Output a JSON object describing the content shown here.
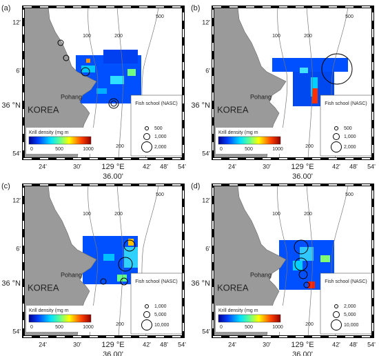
{
  "panels": [
    {
      "label": "(a)",
      "y_labels": [
        "12'",
        "6'",
        "36 °N",
        "54'"
      ],
      "x_labels": [
        "24'",
        "30'",
        "129 °E",
        "42'",
        "48'",
        "54'"
      ],
      "x_sublabel": "36.00'",
      "contours": [
        "100",
        "200",
        "500",
        "100",
        "200"
      ],
      "country": "KOREA",
      "city": "Pohang",
      "krill_legend": {
        "title": "Krill density (mg m",
        "ticks": [
          "0",
          "500",
          "1000"
        ]
      },
      "fish_legend": {
        "title": "Fish school (NASC)",
        "sizes": [
          "500",
          "1,000",
          "2,000"
        ]
      }
    },
    {
      "label": "(b)",
      "y_labels": [
        "12'",
        "6'",
        "36 °N",
        "54'"
      ],
      "x_labels": [
        "24'",
        "30'",
        "129 °E",
        "42'",
        "48'",
        "54'"
      ],
      "x_sublabel": "36.00'",
      "contours": [
        "100",
        "200",
        "500",
        "100",
        "200"
      ],
      "country": "KOREA",
      "city": "Pohang",
      "krill_legend": {
        "title": "Krill density (mg m",
        "ticks": [
          "0",
          "500",
          "1000"
        ]
      },
      "fish_legend": {
        "title": "Fish school (NASC)",
        "sizes": [
          "500",
          "1,000",
          "2,000"
        ]
      }
    },
    {
      "label": "(c)",
      "y_labels": [
        "12'",
        "6'",
        "36 °N",
        "54'"
      ],
      "x_labels": [
        "24'",
        "30'",
        "129 °E",
        "42'",
        "48'",
        "54'"
      ],
      "x_sublabel": "36.00'",
      "contours": [
        "100",
        "200",
        "500",
        "100",
        "200"
      ],
      "country": "KOREA",
      "city": "Pohang",
      "krill_legend": {
        "title": "Krill density (mg m",
        "ticks": [
          "0",
          "500",
          "1000"
        ]
      },
      "fish_legend": {
        "title": "Fish school (NASC)",
        "sizes": [
          "1,000",
          "5,000",
          "10,000"
        ]
      }
    },
    {
      "label": "(d)",
      "y_labels": [
        "12'",
        "6'",
        "36 °N",
        "54'"
      ],
      "x_labels": [
        "24'",
        "30'",
        "129 °E",
        "42'",
        "48'",
        "54'"
      ],
      "x_sublabel": "36.00'",
      "contours": [
        "100",
        "200",
        "500",
        "100",
        "200"
      ],
      "country": "KOREA",
      "city": "Pohang",
      "krill_legend": {
        "title": "Krill density (mg m",
        "ticks": [
          "0",
          "500",
          "1000"
        ]
      },
      "fish_legend": {
        "title": "Fish school (NASC)",
        "sizes": [
          "2,000",
          "5,000",
          "10,000"
        ]
      }
    }
  ]
}
